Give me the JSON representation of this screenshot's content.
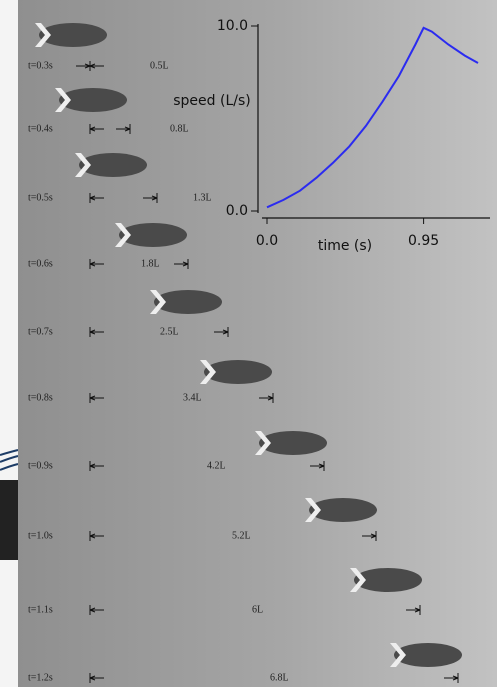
{
  "frames": [
    {
      "time": "t=0.3s",
      "distance": "0.5L"
    },
    {
      "time": "t=0.4s",
      "distance": "0.8L"
    },
    {
      "time": "t=0.5s",
      "distance": "1.3L"
    },
    {
      "time": "t=0.6s",
      "distance": "1.8L"
    },
    {
      "time": "t=0.7s",
      "distance": "2.5L"
    },
    {
      "time": "t=0.8s",
      "distance": "3.4L"
    },
    {
      "time": "t=0.9s",
      "distance": "4.2L"
    },
    {
      "time": "t=1.0s",
      "distance": "5.2L"
    },
    {
      "time": "t=1.1s",
      "distance": "6L"
    },
    {
      "time": "t=1.2s",
      "distance": "6.8L"
    }
  ],
  "chart_data": {
    "type": "line",
    "x_label": "time (s)",
    "y_label": "speed (L/s)",
    "x": [
      0,
      0.1,
      0.2,
      0.3,
      0.4,
      0.5,
      0.6,
      0.7,
      0.8,
      0.9,
      0.95,
      1.0,
      1.1,
      1.2,
      1.28
    ],
    "series": [
      {
        "color": "#2b2bf0",
        "values": [
          0.2,
          0.6,
          1.1,
          1.8,
          2.6,
          3.5,
          4.6,
          5.9,
          7.3,
          9.0,
          9.9,
          9.7,
          9.0,
          8.4,
          8.0
        ]
      }
    ],
    "xlim": [
      0,
      1.3
    ],
    "xticks": [
      {
        "value": 0,
        "label": "0.0"
      },
      0.95
    ],
    "ylim": [
      0,
      10
    ],
    "yticks": [
      {
        "value": 0,
        "label": "0.0"
      },
      {
        "value": 10,
        "label": "10.0"
      }
    ]
  }
}
